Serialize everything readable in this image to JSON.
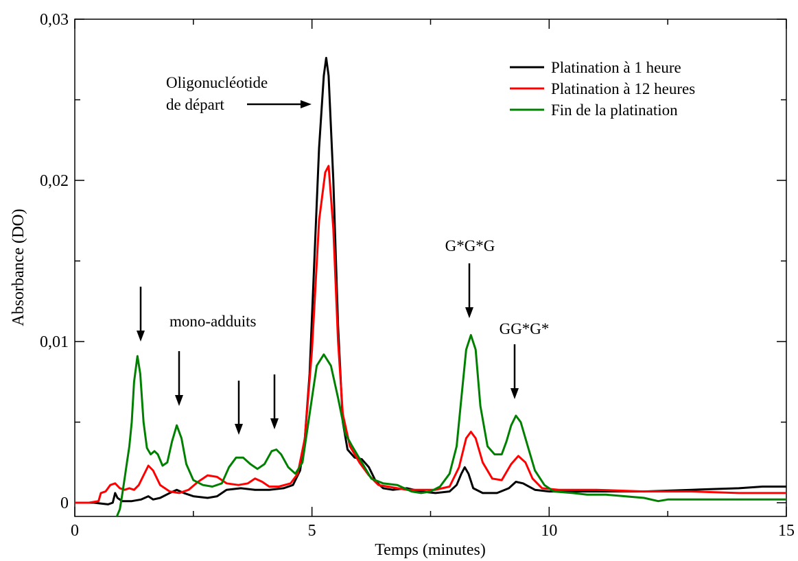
{
  "chart_data": {
    "type": "line",
    "title": "",
    "xlabel": "Temps (minutes)",
    "ylabel": "Absorbance (DO)",
    "xlim": [
      0,
      15
    ],
    "ylim": [
      -0.00085,
      0.03
    ],
    "x_ticks": [
      0,
      5,
      10,
      15
    ],
    "x_tick_labels": [
      "0",
      "5",
      "10",
      "15"
    ],
    "y_ticks": [
      0,
      0.01,
      0.02,
      0.03
    ],
    "y_tick_labels": [
      "0",
      "0,01",
      "0,02",
      "0,03"
    ],
    "grid": false,
    "legend_position": "top-right",
    "series": [
      {
        "name": "Platination à 1 heure",
        "color": "#000000",
        "points": [
          [
            0,
            0
          ],
          [
            0.4,
            0
          ],
          [
            0.7,
            -0.0001
          ],
          [
            0.8,
            0
          ],
          [
            0.85,
            0.0006
          ],
          [
            0.9,
            0.0003
          ],
          [
            1.0,
            0.0001
          ],
          [
            1.2,
            0.0001
          ],
          [
            1.4,
            0.0002
          ],
          [
            1.55,
            0.0004
          ],
          [
            1.65,
            0.0002
          ],
          [
            1.8,
            0.0003
          ],
          [
            2.0,
            0.0006
          ],
          [
            2.15,
            0.0008
          ],
          [
            2.3,
            0.0006
          ],
          [
            2.5,
            0.0004
          ],
          [
            2.8,
            0.0003
          ],
          [
            3.0,
            0.0004
          ],
          [
            3.2,
            0.0008
          ],
          [
            3.5,
            0.0009
          ],
          [
            3.8,
            0.0008
          ],
          [
            4.1,
            0.0008
          ],
          [
            4.4,
            0.0009
          ],
          [
            4.6,
            0.0011
          ],
          [
            4.75,
            0.002
          ],
          [
            4.85,
            0.004
          ],
          [
            4.95,
            0.008
          ],
          [
            5.05,
            0.015
          ],
          [
            5.15,
            0.022
          ],
          [
            5.25,
            0.0265
          ],
          [
            5.3,
            0.0276
          ],
          [
            5.35,
            0.0265
          ],
          [
            5.45,
            0.02
          ],
          [
            5.55,
            0.011
          ],
          [
            5.65,
            0.005
          ],
          [
            5.75,
            0.0033
          ],
          [
            5.9,
            0.0028
          ],
          [
            6.05,
            0.0027
          ],
          [
            6.2,
            0.0022
          ],
          [
            6.35,
            0.0013
          ],
          [
            6.5,
            0.0009
          ],
          [
            6.7,
            0.0008
          ],
          [
            7.0,
            0.0009
          ],
          [
            7.3,
            0.0007
          ],
          [
            7.6,
            0.0006
          ],
          [
            7.9,
            0.0007
          ],
          [
            8.05,
            0.0011
          ],
          [
            8.15,
            0.0018
          ],
          [
            8.22,
            0.0022
          ],
          [
            8.3,
            0.0018
          ],
          [
            8.4,
            0.0009
          ],
          [
            8.6,
            0.0006
          ],
          [
            8.9,
            0.0006
          ],
          [
            9.15,
            0.0009
          ],
          [
            9.3,
            0.0013
          ],
          [
            9.45,
            0.0012
          ],
          [
            9.7,
            0.0008
          ],
          [
            10.0,
            0.0007
          ],
          [
            11.0,
            0.0007
          ],
          [
            12.0,
            0.0007
          ],
          [
            13.0,
            0.0008
          ],
          [
            14.0,
            0.0009
          ],
          [
            14.5,
            0.001
          ],
          [
            15.0,
            0.001
          ]
        ]
      },
      {
        "name": "Platination à 12 heures",
        "color": "#ff0000",
        "points": [
          [
            0,
            0
          ],
          [
            0.3,
            0
          ],
          [
            0.5,
            0.0001
          ],
          [
            0.55,
            0.0006
          ],
          [
            0.65,
            0.0007
          ],
          [
            0.75,
            0.0011
          ],
          [
            0.85,
            0.0012
          ],
          [
            0.95,
            0.0009
          ],
          [
            1.05,
            0.0008
          ],
          [
            1.15,
            0.0009
          ],
          [
            1.25,
            0.0008
          ],
          [
            1.35,
            0.0011
          ],
          [
            1.45,
            0.0017
          ],
          [
            1.55,
            0.0023
          ],
          [
            1.65,
            0.002
          ],
          [
            1.8,
            0.0011
          ],
          [
            2.0,
            0.0007
          ],
          [
            2.2,
            0.0006
          ],
          [
            2.4,
            0.0008
          ],
          [
            2.6,
            0.0013
          ],
          [
            2.8,
            0.0017
          ],
          [
            3.0,
            0.0016
          ],
          [
            3.2,
            0.0012
          ],
          [
            3.45,
            0.0011
          ],
          [
            3.65,
            0.0012
          ],
          [
            3.8,
            0.0015
          ],
          [
            3.95,
            0.0013
          ],
          [
            4.1,
            0.001
          ],
          [
            4.3,
            0.001
          ],
          [
            4.55,
            0.0012
          ],
          [
            4.7,
            0.0018
          ],
          [
            4.85,
            0.004
          ],
          [
            5.0,
            0.0095
          ],
          [
            5.15,
            0.0175
          ],
          [
            5.28,
            0.0205
          ],
          [
            5.35,
            0.0209
          ],
          [
            5.45,
            0.017
          ],
          [
            5.55,
            0.01
          ],
          [
            5.65,
            0.0055
          ],
          [
            5.8,
            0.0035
          ],
          [
            6.0,
            0.0025
          ],
          [
            6.2,
            0.0017
          ],
          [
            6.4,
            0.0011
          ],
          [
            6.6,
            0.001
          ],
          [
            6.8,
            0.0009
          ],
          [
            7.0,
            0.0008
          ],
          [
            7.3,
            0.0008
          ],
          [
            7.6,
            0.0008
          ],
          [
            7.9,
            0.001
          ],
          [
            8.1,
            0.0022
          ],
          [
            8.25,
            0.004
          ],
          [
            8.35,
            0.0044
          ],
          [
            8.45,
            0.004
          ],
          [
            8.6,
            0.0025
          ],
          [
            8.8,
            0.0015
          ],
          [
            9.0,
            0.0014
          ],
          [
            9.2,
            0.0024
          ],
          [
            9.35,
            0.0029
          ],
          [
            9.5,
            0.0025
          ],
          [
            9.65,
            0.0015
          ],
          [
            9.85,
            0.0009
          ],
          [
            10.2,
            0.0008
          ],
          [
            11.0,
            0.0008
          ],
          [
            12.0,
            0.0007
          ],
          [
            13.0,
            0.0007
          ],
          [
            14.0,
            0.0006
          ],
          [
            15.0,
            0.0006
          ]
        ]
      },
      {
        "name": "Fin de la platination",
        "color": "#008000",
        "points": [
          [
            0.88,
            -0.0009
          ],
          [
            0.95,
            -0.0004
          ],
          [
            1.0,
            0.0005
          ],
          [
            1.05,
            0.0015
          ],
          [
            1.1,
            0.0025
          ],
          [
            1.15,
            0.0035
          ],
          [
            1.2,
            0.005
          ],
          [
            1.25,
            0.0075
          ],
          [
            1.32,
            0.0091
          ],
          [
            1.38,
            0.008
          ],
          [
            1.45,
            0.005
          ],
          [
            1.52,
            0.0034
          ],
          [
            1.6,
            0.003
          ],
          [
            1.68,
            0.0032
          ],
          [
            1.75,
            0.003
          ],
          [
            1.85,
            0.0023
          ],
          [
            1.95,
            0.0025
          ],
          [
            2.05,
            0.0038
          ],
          [
            2.15,
            0.0048
          ],
          [
            2.25,
            0.004
          ],
          [
            2.35,
            0.0024
          ],
          [
            2.5,
            0.0014
          ],
          [
            2.7,
            0.0011
          ],
          [
            2.9,
            0.001
          ],
          [
            3.1,
            0.0012
          ],
          [
            3.25,
            0.0022
          ],
          [
            3.4,
            0.0028
          ],
          [
            3.55,
            0.0028
          ],
          [
            3.7,
            0.0024
          ],
          [
            3.85,
            0.0021
          ],
          [
            4.0,
            0.0024
          ],
          [
            4.15,
            0.0032
          ],
          [
            4.25,
            0.0033
          ],
          [
            4.35,
            0.003
          ],
          [
            4.5,
            0.0022
          ],
          [
            4.65,
            0.0018
          ],
          [
            4.8,
            0.0025
          ],
          [
            4.95,
            0.0055
          ],
          [
            5.1,
            0.0085
          ],
          [
            5.25,
            0.0092
          ],
          [
            5.4,
            0.0085
          ],
          [
            5.55,
            0.0065
          ],
          [
            5.7,
            0.0043
          ],
          [
            5.85,
            0.0035
          ],
          [
            6.05,
            0.0025
          ],
          [
            6.25,
            0.0015
          ],
          [
            6.5,
            0.0012
          ],
          [
            6.8,
            0.0011
          ],
          [
            7.1,
            0.0007
          ],
          [
            7.3,
            0.0006
          ],
          [
            7.5,
            0.0007
          ],
          [
            7.7,
            0.001
          ],
          [
            7.9,
            0.0018
          ],
          [
            8.05,
            0.0035
          ],
          [
            8.15,
            0.0065
          ],
          [
            8.25,
            0.0095
          ],
          [
            8.35,
            0.0104
          ],
          [
            8.45,
            0.0095
          ],
          [
            8.55,
            0.006
          ],
          [
            8.7,
            0.0035
          ],
          [
            8.85,
            0.003
          ],
          [
            9.0,
            0.003
          ],
          [
            9.1,
            0.0038
          ],
          [
            9.2,
            0.0048
          ],
          [
            9.3,
            0.0054
          ],
          [
            9.4,
            0.005
          ],
          [
            9.55,
            0.0035
          ],
          [
            9.7,
            0.002
          ],
          [
            9.9,
            0.0011
          ],
          [
            10.1,
            0.0007
          ],
          [
            10.5,
            0.0006
          ],
          [
            10.8,
            0.0005
          ],
          [
            11.2,
            0.0005
          ],
          [
            11.6,
            0.0004
          ],
          [
            12.0,
            0.0003
          ],
          [
            12.3,
            0.0001
          ],
          [
            12.5,
            0.0002
          ],
          [
            13.0,
            0.0002
          ],
          [
            14.0,
            0.0002
          ],
          [
            15.0,
            0.0002
          ]
        ]
      }
    ],
    "annotations": {
      "oligo_line1": "Oligonucléotide",
      "oligo_line2": "de départ",
      "mono": "mono-adduits",
      "ggg": "G*G*G",
      "gg": "GG*G*"
    }
  }
}
